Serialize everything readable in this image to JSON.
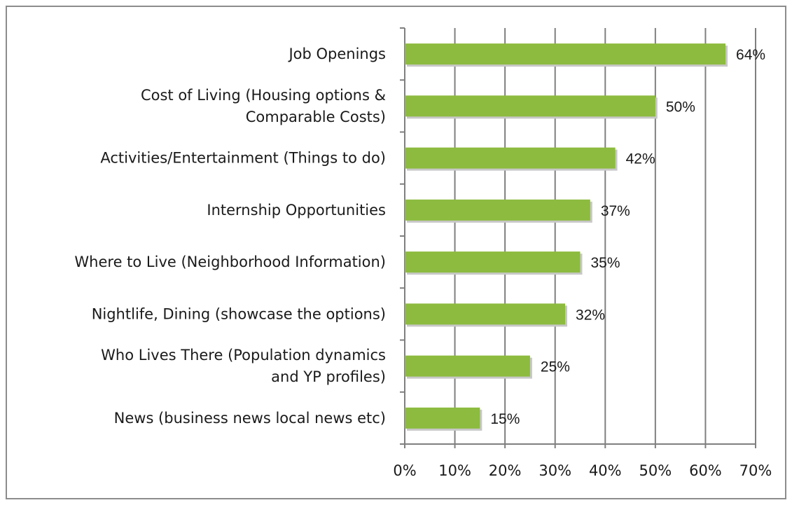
{
  "chart_data": {
    "type": "bar",
    "orientation": "horizontal",
    "categories": [
      [
        "Job Openings"
      ],
      [
        "Cost of Living (Housing options &",
        "Comparable Costs)"
      ],
      [
        "Activities/Entertainment (Things to do)"
      ],
      [
        "Internship Opportunities"
      ],
      [
        "Where to Live (Neighborhood Information)"
      ],
      [
        "Nightlife, Dining (showcase the options)"
      ],
      [
        "Who Lives There (Population dynamics",
        "and YP profiles)"
      ],
      [
        "News (business news local news etc)"
      ]
    ],
    "values": [
      64,
      50,
      42,
      37,
      35,
      32,
      25,
      15
    ],
    "value_labels": [
      "64%",
      "50%",
      "42%",
      "37%",
      "35%",
      "32%",
      "25%",
      "15%"
    ],
    "xlim": [
      0,
      70
    ],
    "x_ticks": [
      0,
      10,
      20,
      30,
      40,
      50,
      60,
      70
    ],
    "x_tick_labels": [
      "0%",
      "10%",
      "20%",
      "30%",
      "40%",
      "50%",
      "60%",
      "70%"
    ],
    "grid": "vertical",
    "legend": "none",
    "title": "",
    "xlabel": "",
    "ylabel": "",
    "colors": {
      "bar": "#8dbb3f",
      "bar_shadow": "#c7c7c7",
      "grid": "#7f7f7f",
      "text": "#1a1a1a",
      "frame": "#8c8c8c"
    }
  }
}
